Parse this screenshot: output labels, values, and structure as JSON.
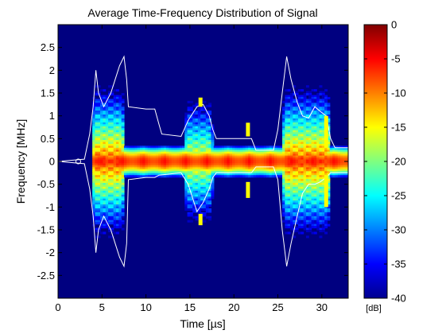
{
  "chart_data": {
    "type": "heatmap",
    "title": "Average Time-Frequency Distribution of Signal",
    "xlabel": "Time [µs]",
    "ylabel": "Frequency [MHz]",
    "xlim": [
      0,
      33
    ],
    "ylim": [
      -3,
      3
    ],
    "xticks": [
      0,
      5,
      10,
      15,
      20,
      25,
      30
    ],
    "xtick_labels": [
      "0",
      "5",
      "10",
      "15",
      "20",
      "25",
      "30"
    ],
    "yticks": [
      2.5,
      2,
      1.5,
      1,
      0.5,
      0,
      -0.5,
      -1,
      -1.5,
      -2,
      -2.5
    ],
    "ytick_labels": [
      "2.5",
      "2",
      "1.5",
      "1",
      "0.5",
      "0",
      "-0.5",
      "-1",
      "-1.5",
      "-2",
      "-2.5"
    ],
    "colorbar": {
      "unit": "[dB]",
      "range": [
        -40,
        0
      ],
      "ticks": [
        0,
        -5,
        -10,
        -15,
        -20,
        -25,
        -30,
        -35,
        -40
      ],
      "tick_labels": [
        "0",
        "-5",
        "-10",
        "-15",
        "-20",
        "-25",
        "-30",
        "-35",
        "-40"
      ],
      "colormap": "jet"
    },
    "background_level_db": -40,
    "colors": {
      "background": "#00008f",
      "envelope": "#ffffff",
      "marker": "#ffff00"
    },
    "segments": [
      {
        "t_start": 3.8,
        "t_end": 7.6,
        "peak_db": -4,
        "max_freq": 1.0
      },
      {
        "t_start": 14.3,
        "t_end": 17.6,
        "peak_db": -10,
        "max_freq": 1.0
      },
      {
        "t_start": 25.5,
        "t_end": 31.0,
        "peak_db": -4,
        "max_freq": 1.0
      }
    ],
    "tone_line": {
      "freq": 0,
      "t_start": 3.8,
      "t_end": 33,
      "peak_db": -5
    },
    "envelope_upper": [
      [
        0,
        0
      ],
      [
        3.0,
        0.05
      ],
      [
        3.6,
        0.6
      ],
      [
        4.0,
        1.2
      ],
      [
        4.3,
        2.0
      ],
      [
        4.6,
        1.5
      ],
      [
        5.2,
        1.2
      ],
      [
        6.0,
        1.5
      ],
      [
        6.5,
        1.8
      ],
      [
        7.0,
        2.1
      ],
      [
        7.5,
        2.3
      ],
      [
        7.8,
        1.8
      ],
      [
        8.0,
        1.2
      ],
      [
        10.0,
        1.15
      ],
      [
        11.0,
        1.15
      ],
      [
        11.5,
        0.8
      ],
      [
        11.8,
        0.6
      ],
      [
        14.0,
        0.55
      ],
      [
        14.8,
        0.9
      ],
      [
        15.8,
        1.2
      ],
      [
        16.5,
        1.25
      ],
      [
        17.2,
        1.0
      ],
      [
        17.6,
        0.7
      ],
      [
        18.0,
        0.5
      ],
      [
        22.0,
        0.5
      ],
      [
        22.5,
        0.25
      ],
      [
        24.5,
        0.25
      ],
      [
        25.0,
        0.7
      ],
      [
        25.5,
        1.5
      ],
      [
        26.0,
        2.3
      ],
      [
        26.5,
        1.8
      ],
      [
        27.2,
        1.3
      ],
      [
        27.8,
        1.0
      ],
      [
        28.5,
        0.95
      ],
      [
        29.2,
        1.2
      ],
      [
        29.8,
        1.1
      ],
      [
        30.5,
        1.0
      ],
      [
        31.0,
        0.5
      ],
      [
        31.5,
        0.3
      ],
      [
        33.0,
        0.3
      ]
    ],
    "envelope_lower": [
      [
        0,
        0
      ],
      [
        3.0,
        -0.05
      ],
      [
        3.6,
        -0.6
      ],
      [
        4.0,
        -1.2
      ],
      [
        4.3,
        -2.0
      ],
      [
        4.6,
        -1.5
      ],
      [
        5.2,
        -1.2
      ],
      [
        6.0,
        -1.5
      ],
      [
        6.5,
        -1.8
      ],
      [
        7.0,
        -2.1
      ],
      [
        7.5,
        -2.3
      ],
      [
        7.8,
        -1.8
      ],
      [
        8.0,
        -0.4
      ],
      [
        10.0,
        -0.35
      ],
      [
        11.0,
        -0.35
      ],
      [
        11.5,
        -0.3
      ],
      [
        14.0,
        -0.25
      ],
      [
        14.8,
        -0.5
      ],
      [
        15.8,
        -1.1
      ],
      [
        16.5,
        -0.9
      ],
      [
        17.2,
        -0.6
      ],
      [
        17.6,
        -0.35
      ],
      [
        18.0,
        -0.25
      ],
      [
        22.0,
        -0.25
      ],
      [
        22.5,
        -0.12
      ],
      [
        24.5,
        -0.12
      ],
      [
        25.0,
        -0.4
      ],
      [
        25.5,
        -1.5
      ],
      [
        26.0,
        -2.3
      ],
      [
        26.5,
        -1.8
      ],
      [
        27.2,
        -1.2
      ],
      [
        27.8,
        -0.7
      ],
      [
        28.5,
        -0.5
      ],
      [
        29.2,
        -0.5
      ],
      [
        29.8,
        -0.45
      ],
      [
        30.5,
        -0.35
      ],
      [
        31.0,
        -0.25
      ],
      [
        33.0,
        -0.25
      ]
    ],
    "markers": [
      {
        "t": 16.2,
        "f_min": 1.2,
        "f_max": 1.4
      },
      {
        "t": 16.2,
        "f_min": -1.4,
        "f_max": -1.15
      },
      {
        "t": 21.6,
        "f_min": 0.55,
        "f_max": 0.85
      },
      {
        "t": 21.6,
        "f_min": -0.8,
        "f_max": -0.45
      },
      {
        "t": 30.5,
        "f_min": 0.3,
        "f_max": 1.0
      },
      {
        "t": 30.5,
        "f_min": -1.0,
        "f_max": -0.3
      }
    ]
  }
}
